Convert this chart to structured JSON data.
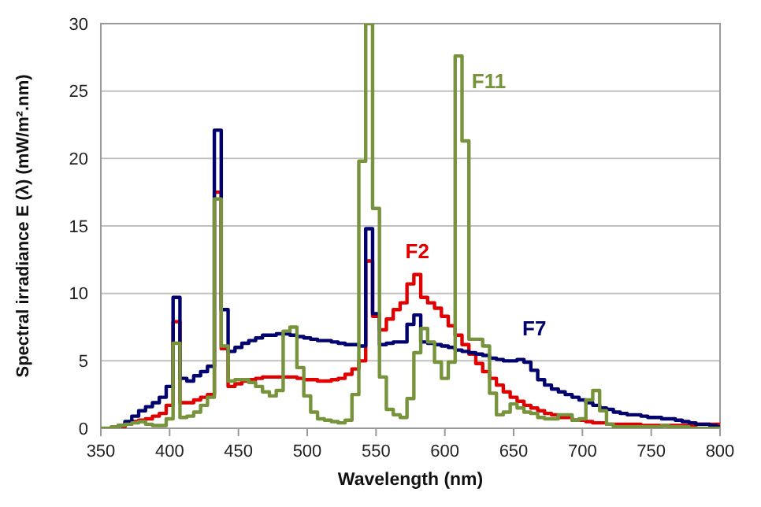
{
  "chart_data": {
    "type": "step",
    "xlabel": "Wavelength (nm)",
    "ylabel": "Spectral irradiance E (λ) (mW/m².nm)",
    "x": [
      350,
      355,
      360,
      365,
      370,
      375,
      380,
      385,
      390,
      395,
      400,
      405,
      410,
      415,
      420,
      425,
      430,
      435,
      440,
      445,
      450,
      455,
      460,
      465,
      470,
      475,
      480,
      485,
      490,
      495,
      500,
      505,
      510,
      515,
      520,
      525,
      530,
      535,
      540,
      545,
      550,
      555,
      560,
      565,
      570,
      575,
      580,
      585,
      590,
      595,
      600,
      605,
      610,
      615,
      620,
      625,
      630,
      635,
      640,
      645,
      650,
      655,
      660,
      665,
      670,
      675,
      680,
      685,
      690,
      695,
      700,
      705,
      710,
      715,
      720,
      725,
      730,
      735,
      740,
      745,
      750,
      755,
      760,
      765,
      770,
      775,
      780,
      785,
      790,
      795,
      800
    ],
    "series": [
      {
        "name": "F2",
        "color": "#e00000",
        "values": [
          null,
          null,
          null,
          0.1,
          0.3,
          0.5,
          0.6,
          0.7,
          0.9,
          1.1,
          1.7,
          7.9,
          1.9,
          1.9,
          2.1,
          2.3,
          2.5,
          17.5,
          5.9,
          3.1,
          3.3,
          3.5,
          3.6,
          3.7,
          3.8,
          3.8,
          3.8,
          3.8,
          3.8,
          3.7,
          3.6,
          3.6,
          3.5,
          3.5,
          3.6,
          3.7,
          4,
          4.4,
          5,
          12.4,
          8.3,
          7.3,
          8.1,
          8.8,
          9.3,
          10.7,
          11.4,
          9.7,
          9.3,
          8.9,
          8.3,
          7.6,
          6.9,
          6.2,
          5.5,
          4.8,
          4.2,
          3.7,
          3.2,
          2.7,
          2.3,
          2,
          1.7,
          1.5,
          1.3,
          1.1,
          1,
          0.8,
          0.8,
          0.6,
          0.6,
          0.5,
          0.4,
          0.4,
          0.3,
          0.3,
          0.3,
          0.3,
          0.3,
          0.2,
          0.2,
          0.2,
          0.2,
          0.2,
          0.2,
          0.2,
          0.2,
          0.3,
          0.3,
          0.3,
          0.3
        ]
      },
      {
        "name": "F7",
        "color": "#00006e",
        "values": [
          null,
          null,
          0,
          0.2,
          0.5,
          0.9,
          1.3,
          1.6,
          1.9,
          2.3,
          3.1,
          9.7,
          3.7,
          3.5,
          3.9,
          4.2,
          4.6,
          22.1,
          8.8,
          5.7,
          6,
          6.3,
          6.5,
          6.7,
          6.9,
          6.9,
          7,
          7,
          6.9,
          6.8,
          6.7,
          6.6,
          6.5,
          6.5,
          6.4,
          6.3,
          6.2,
          6.2,
          6.1,
          14.8,
          8.5,
          6.2,
          6.3,
          6.4,
          6.4,
          7.7,
          8.4,
          6.4,
          6.3,
          6.2,
          6.1,
          6,
          5.8,
          5.7,
          5.6,
          5.5,
          5.4,
          5.2,
          5.1,
          5,
          5,
          5.1,
          4.9,
          4.3,
          3.6,
          3.2,
          2.9,
          2.7,
          2.5,
          2.3,
          2.1,
          1.9,
          1.7,
          1.5,
          1.4,
          1.2,
          1.1,
          1,
          1,
          0.9,
          0.8,
          0.8,
          0.7,
          0.7,
          0.6,
          0.5,
          0.4,
          0.3,
          0.3,
          0.2,
          0.1
        ]
      },
      {
        "name": "F11",
        "color": "#77933c",
        "values": [
          0,
          0,
          0.1,
          0.2,
          0.3,
          0.4,
          0.5,
          0.3,
          0.2,
          0.2,
          0.7,
          6.3,
          0.8,
          0.9,
          1.2,
          1.7,
          2.3,
          17,
          6.1,
          3.5,
          3.6,
          3.6,
          3.4,
          3.1,
          2.7,
          2.4,
          2.8,
          7.2,
          7.5,
          4.5,
          2.4,
          1.2,
          0.7,
          0.6,
          0.5,
          0.4,
          0.6,
          2.5,
          19.8,
          30,
          16.3,
          3.8,
          1.4,
          1,
          0.8,
          2.2,
          5.6,
          7.4,
          6.4,
          4.9,
          3.7,
          4.9,
          27.6,
          21.3,
          6.6,
          6.6,
          6.1,
          2.6,
          1,
          1.2,
          1.8,
          1.5,
          1.2,
          1.1,
          0.8,
          0.7,
          0.7,
          1,
          1,
          0.6,
          0.7,
          2.1,
          2.8,
          1.3,
          0.3,
          0.1,
          0.1,
          0.1,
          0.1,
          0.1,
          0.1,
          0.1,
          0.2,
          0.1,
          0.1,
          0.1,
          0,
          0,
          0,
          0,
          0
        ]
      }
    ],
    "xlim": [
      350,
      800
    ],
    "xticks": [
      350,
      400,
      450,
      500,
      550,
      600,
      650,
      700,
      750,
      800
    ],
    "ylim": [
      0,
      30
    ],
    "yticks": [
      0,
      5,
      10,
      15,
      20,
      25,
      30
    ],
    "grid": "y",
    "legend": false
  }
}
